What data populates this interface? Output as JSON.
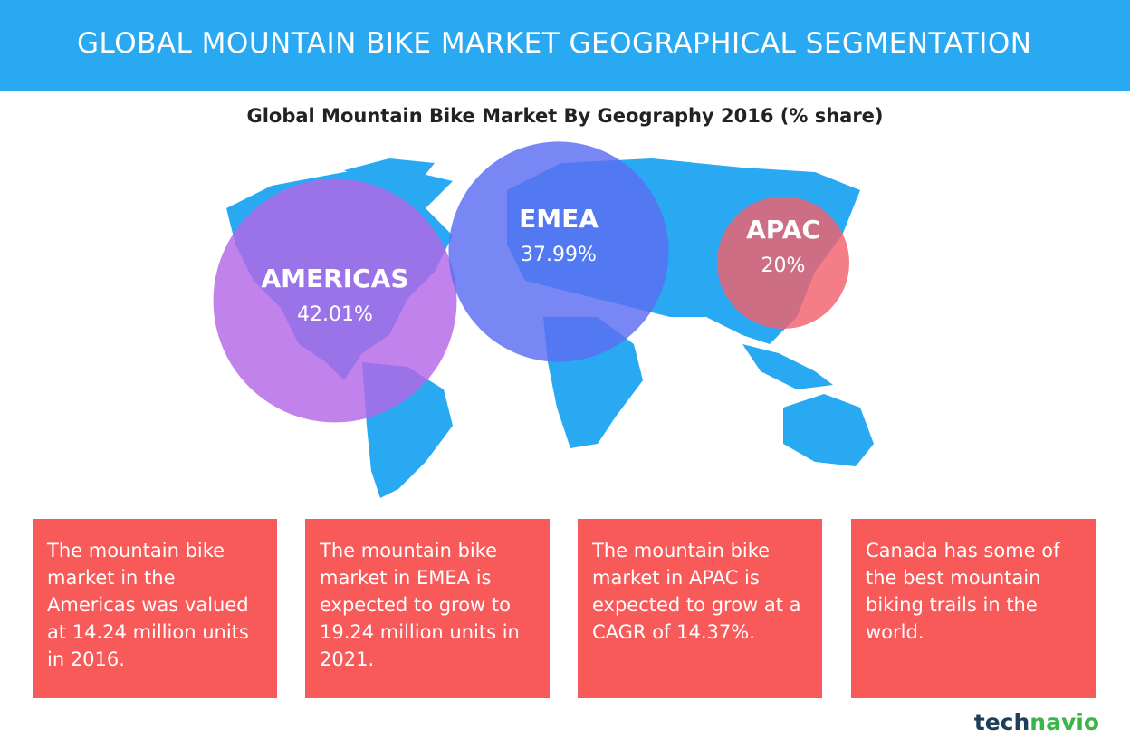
{
  "header": {
    "title": "GLOBAL MOUNTAIN BIKE MARKET GEOGRAPHICAL SEGMENTATION"
  },
  "chart_data": {
    "type": "bubble",
    "title": "Global Mountain Bike Market By Geography 2016 (% share)",
    "categories": [
      "AMERICAS",
      "EMEA",
      "APAC"
    ],
    "values": [
      42.01,
      37.99,
      20
    ],
    "value_labels": [
      "42.01%",
      "37.99%",
      "20%"
    ],
    "colors": [
      "#b566e6",
      "#5b6cf2",
      "#f2606c"
    ]
  },
  "boxes": [
    "The mountain bike market in the Americas was valued at 14.24 million units in 2016.",
    "The mountain bike market in EMEA is expected to grow to 19.24 million units in 2021.",
    "The mountain bike market in APAC is expected to grow at a CAGR of 14.37%.",
    "Canada has some of the best mountain biking trails in the world."
  ],
  "logo": [
    "tech",
    "navio"
  ]
}
